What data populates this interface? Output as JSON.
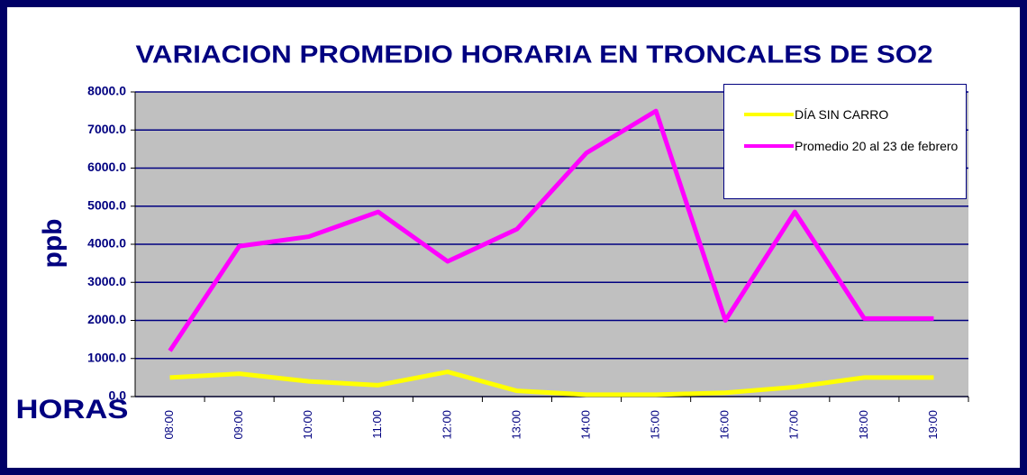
{
  "chart_data": {
    "type": "line",
    "title": "VARIACION PROMEDIO HORARIA EN TRONCALES DE SO2",
    "y_label": "ppb",
    "x_label": "HORAS",
    "categories": [
      "08:00",
      "09:00",
      "10:00",
      "11:00",
      "12:00",
      "13:00",
      "14:00",
      "15:00",
      "16:00",
      "17:00",
      "18:00",
      "19:00"
    ],
    "series": [
      {
        "name": "DÍA SIN CARRO",
        "color": "#ffff00",
        "values": [
          500,
          600,
          400,
          300,
          650,
          150,
          50,
          50,
          100,
          250,
          500,
          500
        ]
      },
      {
        "name": "Promedio 20 al 23 de febrero",
        "color": "#ff00ff",
        "values": [
          1200,
          3950,
          4200,
          4850,
          3550,
          4400,
          6400,
          7500,
          2000,
          4850,
          2050,
          2050
        ]
      }
    ],
    "ylim": [
      0,
      8000
    ],
    "yticks": [
      {
        "value": 0,
        "label": "0.0"
      },
      {
        "value": 1000,
        "label": "1000.0"
      },
      {
        "value": 2000,
        "label": "2000.0"
      },
      {
        "value": 3000,
        "label": "3000.0"
      },
      {
        "value": 4000,
        "label": "4000.0"
      },
      {
        "value": 5000,
        "label": "5000.0"
      },
      {
        "value": 6000,
        "label": "6000.0"
      },
      {
        "value": 7000,
        "label": "7000.0"
      },
      {
        "value": 8000,
        "label": "8000.0"
      }
    ],
    "grid": true,
    "legend": "top-right",
    "plot_color": "#c0c0c0"
  }
}
